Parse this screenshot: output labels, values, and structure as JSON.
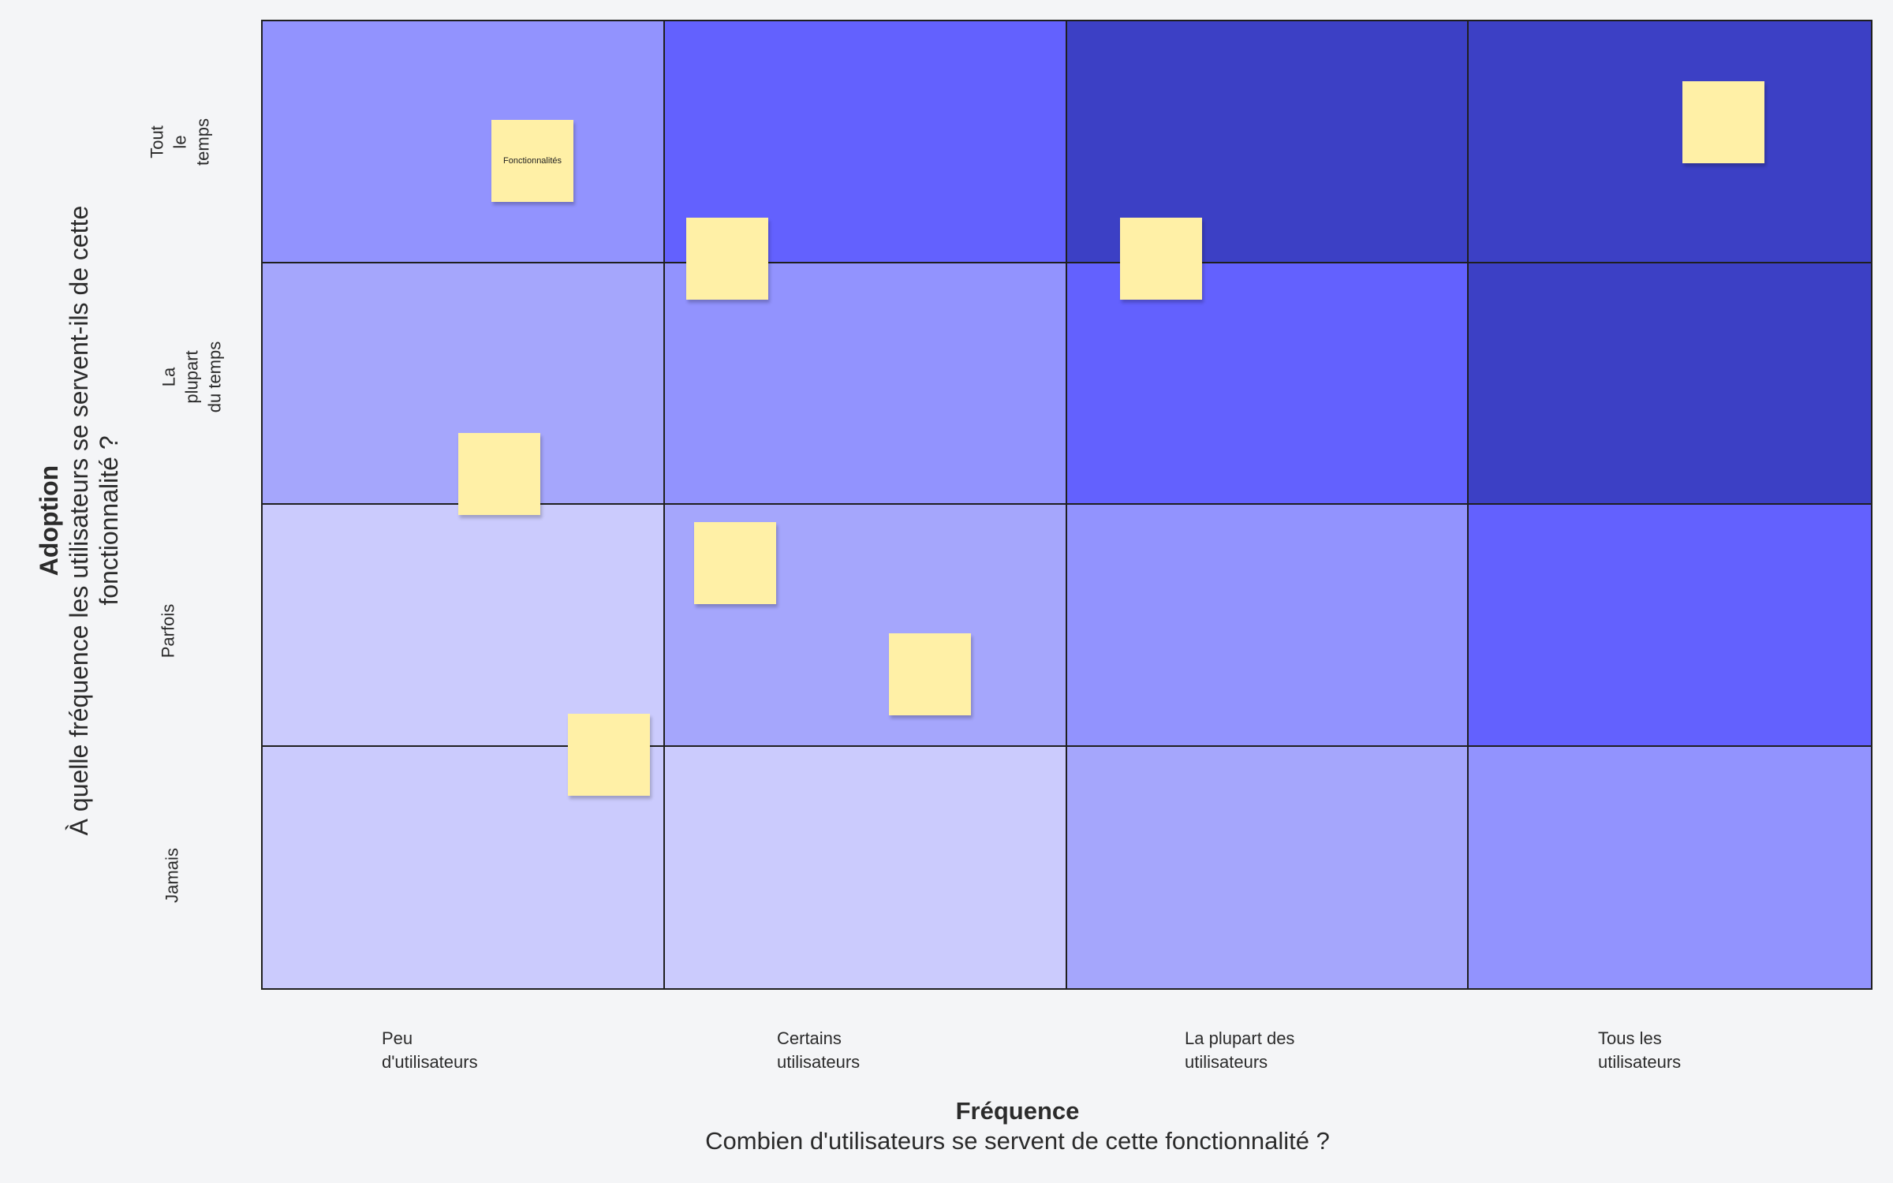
{
  "colors": {
    "level1": "#cbcbfd",
    "level2": "#a5a6fc",
    "level3": "#9293fe",
    "level4": "#6361fe",
    "level5": "#3c40c5",
    "sticky": "#fff0a6",
    "grid_line": "#1f1f1f",
    "background": "#f4f5f7"
  },
  "matrix": {
    "rows": [
      {
        "label": "Tout\nle\ntemps",
        "levels": [
          3,
          4,
          5,
          5
        ]
      },
      {
        "label": "La\nplupart\ndu temps",
        "levels": [
          2,
          3,
          4,
          5
        ]
      },
      {
        "label": "Parfois",
        "levels": [
          1,
          2,
          3,
          4
        ]
      },
      {
        "label": "Jamais",
        "levels": [
          1,
          1,
          2,
          3
        ]
      }
    ],
    "columns": [
      {
        "label": "Peu\nd'utilisateurs"
      },
      {
        "label": "Certains\nutilisateurs"
      },
      {
        "label": "La plupart des\nutilisateurs"
      },
      {
        "label": "Tous les\nutilisateurs"
      }
    ]
  },
  "axes": {
    "x": {
      "title": "Fréquence",
      "subtitle": "Combien d'utilisateurs se servent de cette fonctionnalité ?"
    },
    "y": {
      "title": "Adoption",
      "subtitle": "À quelle fréquence les utilisateurs se servent-ils de cette fonctionnalité ?"
    }
  },
  "stickies": [
    {
      "text": "Fonctionnalités"
    },
    {
      "text": ""
    },
    {
      "text": ""
    },
    {
      "text": ""
    },
    {
      "text": ""
    },
    {
      "text": ""
    },
    {
      "text": ""
    },
    {
      "text": ""
    }
  ]
}
